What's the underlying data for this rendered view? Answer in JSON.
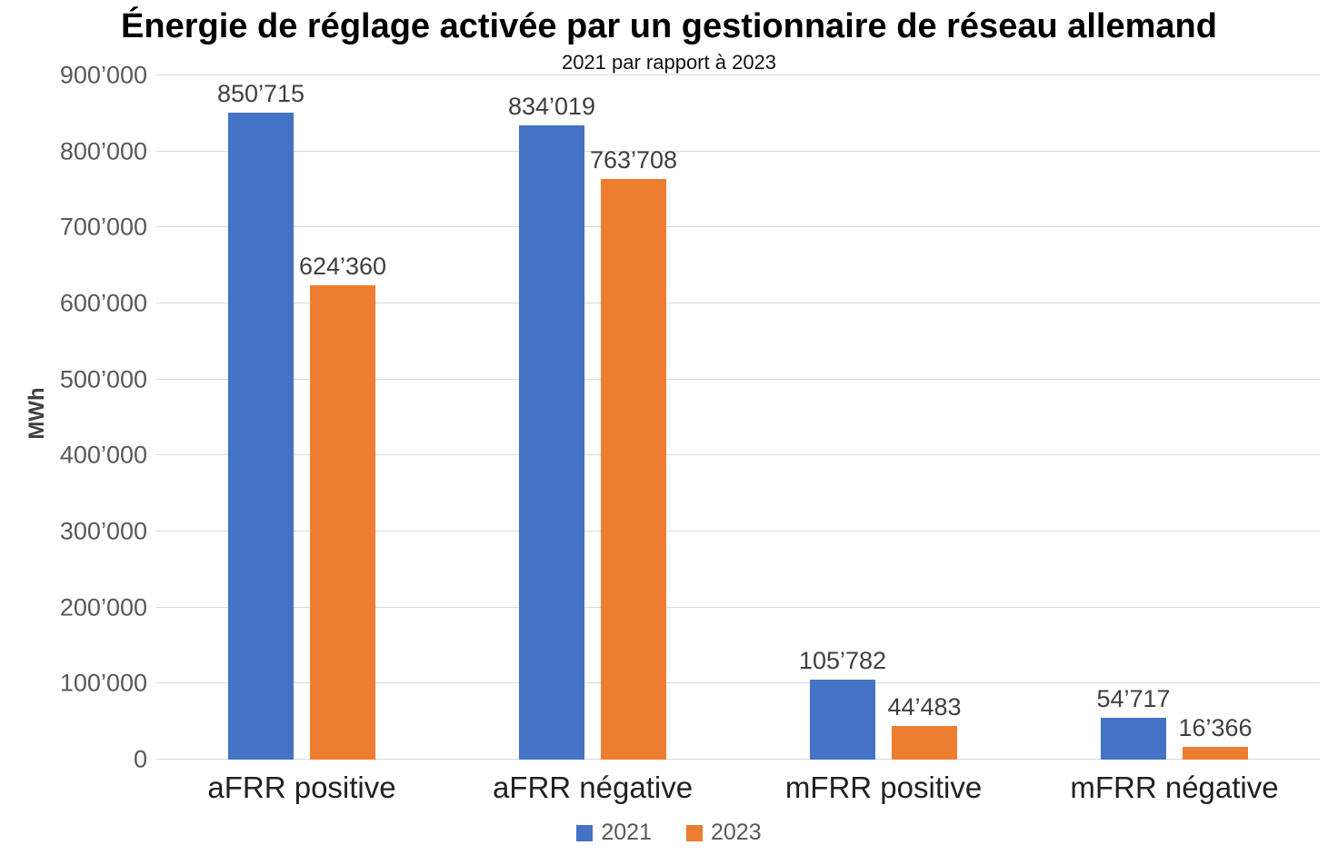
{
  "title": "Énergie de réglage activée par un gestionnaire de réseau allemand",
  "subtitle": "2021 par rapport à 2023",
  "y_axis_title": "MWh",
  "colors": {
    "series_2021": "#4472C4",
    "series_2023": "#ED7D31",
    "gridline": "#D9D9D9",
    "tick_text": "#595959",
    "data_label_text": "#404040"
  },
  "chart_data": {
    "type": "bar",
    "title": "Énergie de réglage activée par un gestionnaire de réseau allemand",
    "subtitle": "2021 par rapport à 2023",
    "xlabel": "",
    "ylabel": "MWh",
    "grid": true,
    "legend_position": "bottom",
    "ylim": [
      0,
      900000
    ],
    "ytick_step": 100000,
    "ytick_labels": [
      "0",
      "100’000",
      "200’000",
      "300’000",
      "400’000",
      "500’000",
      "600’000",
      "700’000",
      "800’000",
      "900’000"
    ],
    "categories": [
      "aFRR positive",
      "aFRR négative",
      "mFRR positive",
      "mFRR négative"
    ],
    "series": [
      {
        "name": "2021",
        "color": "#4472C4",
        "values": [
          850715,
          834019,
          105782,
          54717
        ],
        "labels": [
          "850’715",
          "834’019",
          "105’782",
          "54’717"
        ]
      },
      {
        "name": "2023",
        "color": "#ED7D31",
        "values": [
          624360,
          763708,
          44483,
          16366
        ],
        "labels": [
          "624’360",
          "763’708",
          "44’483",
          "16’366"
        ]
      }
    ]
  }
}
